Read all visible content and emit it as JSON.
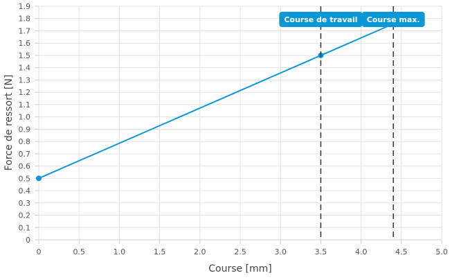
{
  "chart_data": {
    "type": "line",
    "title": "",
    "xlabel": "Course [mm]",
    "ylabel": "Force de ressort [N]",
    "xlim": [
      0,
      5.0
    ],
    "ylim": [
      0,
      1.9
    ],
    "x_ticks": [
      "0",
      "0.5",
      "1.0",
      "1.5",
      "2.0",
      "2.5",
      "3.0",
      "3.5",
      "4.0",
      "4.5",
      "5.0"
    ],
    "y_ticks": [
      "0",
      "0.1",
      "0.2",
      "0.3",
      "0.4",
      "0.5",
      "0.6",
      "0.7",
      "0.8",
      "0.9",
      "1.0",
      "1.1",
      "1.2",
      "1.3",
      "1.4",
      "1.5",
      "1.6",
      "1.7",
      "1.8",
      "1.9"
    ],
    "grid": true,
    "series": [
      {
        "points": [
          {
            "x": 0,
            "y": 0.5
          },
          {
            "x": 3.5,
            "y": 1.5
          },
          {
            "x": 4.4,
            "y": 1.757
          }
        ],
        "markers": [
          {
            "x": 0,
            "y": 0.5
          },
          {
            "x": 3.5,
            "y": 1.5
          }
        ]
      }
    ],
    "vertical_markers": [
      {
        "x": 3.5,
        "label": "Course de travail"
      },
      {
        "x": 4.4,
        "label": "Course max."
      }
    ],
    "colors": {
      "line": "#0e96d6",
      "label_bg": "#0b97d6",
      "label_text": "#ffffff",
      "marker_line": "#333333",
      "grid": "#e1e1e1",
      "axis_text": "#555555"
    }
  }
}
